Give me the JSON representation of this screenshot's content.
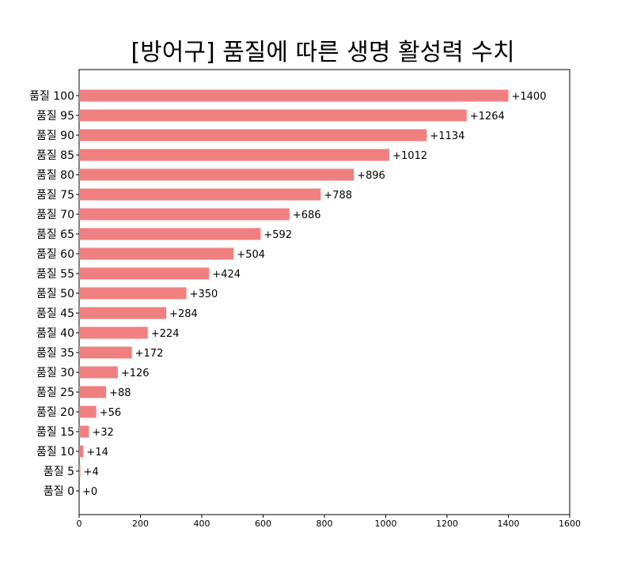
{
  "chart_data": {
    "type": "bar",
    "orientation": "horizontal",
    "title": "[방어구] 품질에 따른 생명 활성력 수치",
    "xlabel": "",
    "ylabel": "",
    "categories": [
      "품질 0",
      "품질 5",
      "품질 10",
      "품질 15",
      "품질 20",
      "품질 25",
      "품질 30",
      "품질 35",
      "품질 40",
      "품질 45",
      "품질 50",
      "품질 55",
      "품질 60",
      "품질 65",
      "품질 70",
      "품질 75",
      "품질 80",
      "품질 85",
      "품질 90",
      "품질 95",
      "품질 100"
    ],
    "values": [
      0,
      4,
      14,
      32,
      56,
      88,
      126,
      172,
      224,
      284,
      350,
      424,
      504,
      592,
      686,
      788,
      896,
      1012,
      1134,
      1264,
      1400
    ],
    "data_labels": [
      "+0",
      "+4",
      "+14",
      "+32",
      "+56",
      "+88",
      "+126",
      "+172",
      "+224",
      "+284",
      "+350",
      "+424",
      "+504",
      "+592",
      "+686",
      "+788",
      "+896",
      "+1012",
      "+1134",
      "+1264",
      "+1400"
    ],
    "xlim": [
      0,
      1600
    ],
    "xticks": [
      0,
      200,
      400,
      600,
      800,
      1000,
      1200,
      1400,
      1600
    ],
    "grid": false,
    "bar_color": "#f08080"
  }
}
